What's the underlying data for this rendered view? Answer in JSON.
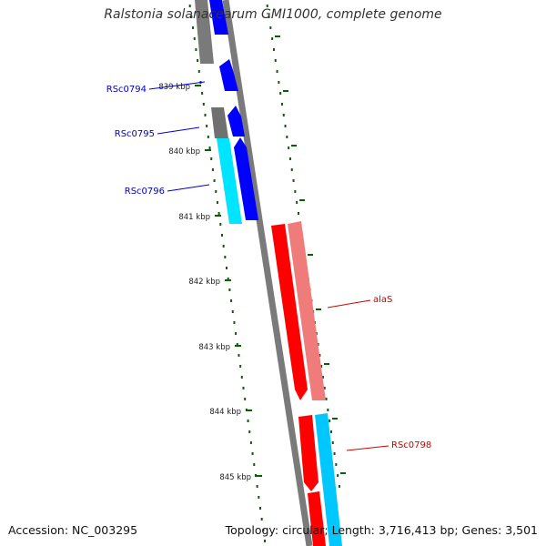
{
  "title": "Ralstonia solanacearum GMI1000, complete genome",
  "footer": {
    "accession": "Accession: NC_003295",
    "summary": "Topology: circular; Length: 3,716,413 bp; Genes: 3,501"
  },
  "ticks": [
    "839 kbp",
    "840 kbp",
    "841 kbp",
    "842 kbp",
    "843 kbp",
    "844 kbp",
    "845 kbp"
  ],
  "gene_labels": [
    {
      "name": "RSc0794",
      "color": "#0000cc"
    },
    {
      "name": "RSc0795",
      "color": "#0000cc"
    },
    {
      "name": "RSc0796",
      "color": "#0000cc"
    },
    {
      "name": "alaS",
      "color": "#cc0000"
    },
    {
      "name": "RSc0798",
      "color": "#cc0000"
    }
  ],
  "colors": {
    "backbone": "#808080",
    "forward_cds": "#0000ff",
    "reverse_cds": "#ff0000",
    "gray_feature": "#7f7f7f",
    "cyan_feature": "#00e5ff",
    "light_red_feature": "#f08080",
    "tick_mark": "#006400"
  }
}
